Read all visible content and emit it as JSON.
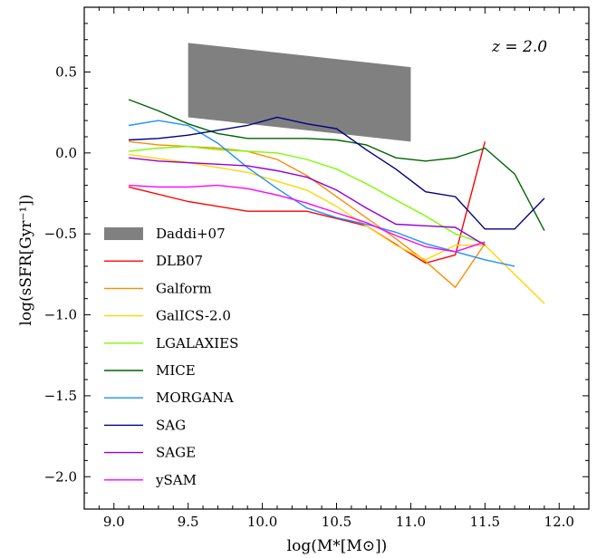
{
  "chart_data": {
    "type": "line",
    "xlabel": "log(M*[M⊙])",
    "ylabel": "log(sSFR[Gyr⁻¹])",
    "annotation": "z = 2.0",
    "xlim": [
      8.8,
      12.2
    ],
    "ylim": [
      -2.2,
      0.9
    ],
    "xticks": [
      "9.0",
      "9.5",
      "10.0",
      "10.5",
      "11.0",
      "11.5",
      "12.0"
    ],
    "yticks": [
      "0.5",
      "0.0",
      "−0.5",
      "−1.0",
      "−1.5",
      "−2.0"
    ],
    "grid": false,
    "legend_position": "left",
    "band": {
      "name": "Daddi+07",
      "color": "#808080",
      "x": [
        9.5,
        11.0
      ],
      "upper": [
        0.68,
        0.53
      ],
      "lower": [
        0.22,
        0.07
      ]
    },
    "series": [
      {
        "name": "DLB07",
        "color": "#ff0000",
        "x": [
          9.1,
          9.5,
          9.9,
          10.3,
          10.7,
          11.1,
          11.3,
          11.5
        ],
        "y": [
          -0.21,
          -0.3,
          -0.36,
          -0.36,
          -0.45,
          -0.68,
          -0.63,
          0.07
        ]
      },
      {
        "name": "Galform",
        "color": "#ff8c00",
        "x": [
          9.1,
          9.3,
          9.5,
          9.7,
          9.9,
          10.1,
          10.3,
          10.5,
          10.7,
          10.9,
          11.1,
          11.3,
          11.5
        ],
        "y": [
          0.07,
          0.05,
          0.04,
          0.03,
          0.01,
          -0.04,
          -0.14,
          -0.27,
          -0.4,
          -0.53,
          -0.67,
          -0.83,
          -0.56
        ]
      },
      {
        "name": "GalICS-2.0",
        "color": "#ffd700",
        "x": [
          9.1,
          9.5,
          9.9,
          10.3,
          10.5,
          10.7,
          10.9,
          11.1,
          11.3,
          11.5,
          11.9
        ],
        "y": [
          -0.01,
          -0.06,
          -0.12,
          -0.23,
          -0.33,
          -0.45,
          -0.57,
          -0.66,
          -0.57,
          -0.57,
          -0.93
        ]
      },
      {
        "name": "LGALAXIES",
        "color": "#7cfc00",
        "x": [
          9.1,
          9.3,
          9.5,
          9.7,
          9.9,
          10.1,
          10.3,
          10.5,
          10.7,
          10.9,
          11.1,
          11.3,
          11.5
        ],
        "y": [
          0.01,
          0.03,
          0.04,
          0.02,
          0.01,
          0.0,
          -0.04,
          -0.1,
          -0.19,
          -0.29,
          -0.39,
          -0.5,
          -0.56
        ]
      },
      {
        "name": "MICE",
        "color": "#006400",
        "x": [
          9.1,
          9.3,
          9.5,
          9.7,
          9.9,
          10.1,
          10.3,
          10.5,
          10.7,
          10.9,
          11.1,
          11.3,
          11.5,
          11.7,
          11.9
        ],
        "y": [
          0.33,
          0.26,
          0.18,
          0.12,
          0.09,
          0.09,
          0.09,
          0.08,
          0.05,
          -0.03,
          -0.05,
          -0.03,
          0.03,
          -0.13,
          -0.48
        ]
      },
      {
        "name": "MORGANA",
        "color": "#1e90ff",
        "x": [
          9.1,
          9.3,
          9.5,
          9.7,
          9.9,
          10.1,
          10.3,
          10.5,
          10.7,
          10.9,
          11.1,
          11.3,
          11.5,
          11.7
        ],
        "y": [
          0.17,
          0.2,
          0.17,
          0.06,
          -0.09,
          -0.22,
          -0.34,
          -0.4,
          -0.44,
          -0.49,
          -0.56,
          -0.61,
          -0.66,
          -0.7
        ]
      },
      {
        "name": "SAG",
        "color": "#000080",
        "x": [
          9.1,
          9.3,
          9.5,
          9.7,
          9.9,
          10.1,
          10.3,
          10.5,
          10.7,
          10.9,
          11.1,
          11.3,
          11.5,
          11.7,
          11.9
        ],
        "y": [
          0.08,
          0.09,
          0.11,
          0.14,
          0.17,
          0.22,
          0.18,
          0.15,
          0.02,
          -0.1,
          -0.24,
          -0.27,
          -0.47,
          -0.47,
          -0.28
        ]
      },
      {
        "name": "SAGE",
        "color": "#9400d3",
        "x": [
          9.1,
          9.3,
          9.5,
          9.7,
          9.9,
          10.1,
          10.3,
          10.5,
          10.7,
          10.9,
          11.1,
          11.3,
          11.5
        ],
        "y": [
          -0.03,
          -0.05,
          -0.06,
          -0.07,
          -0.08,
          -0.11,
          -0.15,
          -0.23,
          -0.34,
          -0.44,
          -0.45,
          -0.46,
          -0.57
        ]
      },
      {
        "name": "ySAM",
        "color": "#ff00ff",
        "x": [
          9.1,
          9.3,
          9.5,
          9.7,
          9.9,
          10.1,
          10.3,
          10.5,
          10.7,
          10.9,
          11.1,
          11.3,
          11.5
        ],
        "y": [
          -0.2,
          -0.21,
          -0.21,
          -0.2,
          -0.22,
          -0.26,
          -0.31,
          -0.37,
          -0.43,
          -0.51,
          -0.58,
          -0.61,
          -0.55
        ]
      }
    ]
  }
}
